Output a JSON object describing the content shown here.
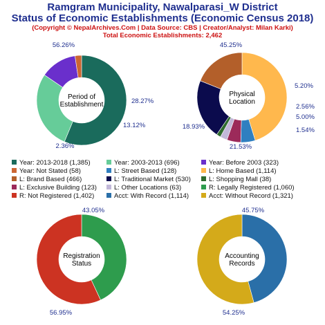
{
  "header": {
    "title_line1": "Ramgram Municipality, Nawalparasi_W District",
    "title_line2": "Status of Economic Establishments (Economic Census 2018)",
    "copyright": "(Copyright © NepalArchives.Com | Data Source: CBS | Creator/Analyst: Milan Karki)",
    "total": "Total Economic Establishments: 2,462"
  },
  "chart_data": [
    {
      "type": "pie",
      "center_label": [
        "Period of",
        "Establishment"
      ],
      "slices": [
        {
          "label": "Year: 2013-2018",
          "value": 1385,
          "pct": "56.26%",
          "color": "#1a6b5c"
        },
        {
          "label": "Year: 2003-2013",
          "value": 696,
          "pct": "28.27%",
          "color": "#66cc99"
        },
        {
          "label": "Year: Before 2003",
          "value": 323,
          "pct": "13.12%",
          "color": "#6a2fcc"
        },
        {
          "label": "Year: Not Stated",
          "value": 58,
          "pct": "2.36%",
          "color": "#cc6633"
        }
      ]
    },
    {
      "type": "pie",
      "center_label": [
        "Physical",
        "Location"
      ],
      "slices": [
        {
          "label": "L: Home Based",
          "value": 1114,
          "pct": "45.25%",
          "color": "#ffb84d"
        },
        {
          "label": "L: Street Based",
          "value": 128,
          "pct": "5.20%",
          "color": "#2f7fc0"
        },
        {
          "label": "L: Exclusive Building",
          "value": 123,
          "pct": "5.00%",
          "color": "#9c2a5a"
        },
        {
          "label": "L: Other Locations",
          "value": 63,
          "pct": "2.56%",
          "color": "#c2b8d9"
        },
        {
          "label": "L: Shopping Mall",
          "value": 38,
          "pct": "1.54%",
          "color": "#2e6b2e"
        },
        {
          "label": "L: Traditional Market",
          "value": 530,
          "pct": "21.53%",
          "color": "#0b0b4d"
        },
        {
          "label": "L: Brand Based",
          "value": 466,
          "pct": "18.93%",
          "color": "#b35f2a"
        }
      ]
    },
    {
      "type": "pie",
      "center_label": [
        "Registration",
        "Status"
      ],
      "slices": [
        {
          "label": "R: Legally Registered",
          "value": 1060,
          "pct": "43.05%",
          "color": "#2e9c4d"
        },
        {
          "label": "R: Not Registered",
          "value": 1402,
          "pct": "56.95%",
          "color": "#cc3322"
        }
      ]
    },
    {
      "type": "pie",
      "center_label": [
        "Accounting",
        "Records"
      ],
      "slices": [
        {
          "label": "Acct: With Record",
          "value": 1114,
          "pct": "45.75%",
          "color": "#2a6fa8"
        },
        {
          "label": "Acct: Without Record",
          "value": 1321,
          "pct": "54.25%",
          "color": "#d4aa1a"
        }
      ]
    }
  ],
  "legend": [
    {
      "text": "Year: 2013-2018 (1,385)",
      "color": "#1a6b5c"
    },
    {
      "text": "Year: 2003-2013 (696)",
      "color": "#66cc99"
    },
    {
      "text": "Year: Before 2003 (323)",
      "color": "#6a2fcc"
    },
    {
      "text": "Year: Not Stated (58)",
      "color": "#cc6633"
    },
    {
      "text": "L: Street Based (128)",
      "color": "#2f7fc0"
    },
    {
      "text": "L: Home Based (1,114)",
      "color": "#ffb84d"
    },
    {
      "text": "L: Brand Based (466)",
      "color": "#b35f2a"
    },
    {
      "text": "L: Traditional Market (530)",
      "color": "#0b0b4d"
    },
    {
      "text": "L: Shopping Mall (38)",
      "color": "#2e6b2e"
    },
    {
      "text": "L: Exclusive Building (123)",
      "color": "#9c2a5a"
    },
    {
      "text": "L: Other Locations (63)",
      "color": "#c2b8d9"
    },
    {
      "text": "R: Legally Registered (1,060)",
      "color": "#2e9c4d"
    },
    {
      "text": "R: Not Registered (1,402)",
      "color": "#cc3322"
    },
    {
      "text": "Acct: With Record (1,114)",
      "color": "#2a6fa8"
    },
    {
      "text": "Acct: Without Record (1,321)",
      "color": "#d4aa1a"
    }
  ]
}
